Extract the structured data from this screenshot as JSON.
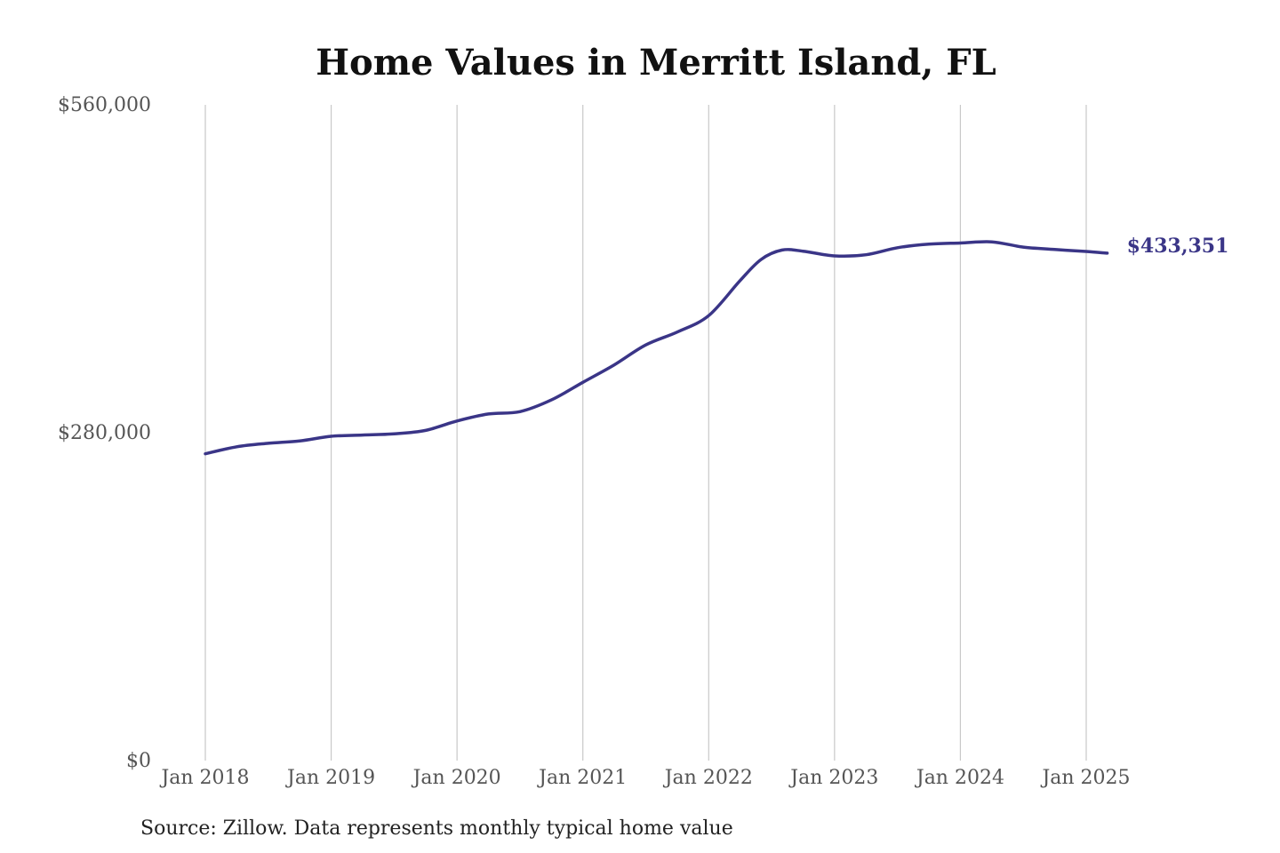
{
  "chart_data": {
    "type": "line",
    "title": "Home Values in Merritt Island, FL",
    "source": "Source: Zillow. Data represents monthly typical home value",
    "xlabel": "",
    "ylabel": "",
    "ylim": [
      0,
      560000
    ],
    "yticks": [
      {
        "value": 0,
        "label": "$0"
      },
      {
        "value": 280000,
        "label": "$280,000"
      },
      {
        "value": 560000,
        "label": "$560,000"
      }
    ],
    "xticks": [
      {
        "date": "2018-01",
        "label": "Jan 2018"
      },
      {
        "date": "2019-01",
        "label": "Jan 2019"
      },
      {
        "date": "2020-01",
        "label": "Jan 2020"
      },
      {
        "date": "2021-01",
        "label": "Jan 2021"
      },
      {
        "date": "2022-01",
        "label": "Jan 2022"
      },
      {
        "date": "2023-01",
        "label": "Jan 2023"
      },
      {
        "date": "2024-01",
        "label": "Jan 2024"
      },
      {
        "date": "2025-01",
        "label": "Jan 2025"
      }
    ],
    "grid": "vertical",
    "series": [
      {
        "color": "#3a3587",
        "end_label": "$433,351",
        "points": [
          {
            "x": "2018-01",
            "y": 262000
          },
          {
            "x": "2018-04",
            "y": 268000
          },
          {
            "x": "2018-07",
            "y": 271000
          },
          {
            "x": "2018-10",
            "y": 273000
          },
          {
            "x": "2019-01",
            "y": 277000
          },
          {
            "x": "2019-04",
            "y": 278000
          },
          {
            "x": "2019-07",
            "y": 279000
          },
          {
            "x": "2019-10",
            "y": 282000
          },
          {
            "x": "2020-01",
            "y": 290000
          },
          {
            "x": "2020-04",
            "y": 296000
          },
          {
            "x": "2020-07",
            "y": 298000
          },
          {
            "x": "2020-10",
            "y": 308000
          },
          {
            "x": "2021-01",
            "y": 323000
          },
          {
            "x": "2021-04",
            "y": 338000
          },
          {
            "x": "2021-07",
            "y": 355000
          },
          {
            "x": "2021-10",
            "y": 366000
          },
          {
            "x": "2022-01",
            "y": 380000
          },
          {
            "x": "2022-04",
            "y": 410000
          },
          {
            "x": "2022-06",
            "y": 428000
          },
          {
            "x": "2022-08",
            "y": 436000
          },
          {
            "x": "2022-10",
            "y": 435000
          },
          {
            "x": "2023-01",
            "y": 431000
          },
          {
            "x": "2023-04",
            "y": 432000
          },
          {
            "x": "2023-07",
            "y": 438000
          },
          {
            "x": "2023-10",
            "y": 441000
          },
          {
            "x": "2024-01",
            "y": 442000
          },
          {
            "x": "2024-04",
            "y": 443000
          },
          {
            "x": "2024-07",
            "y": 438500
          },
          {
            "x": "2024-10",
            "y": 436500
          },
          {
            "x": "2025-01",
            "y": 434800
          },
          {
            "x": "2025-03",
            "y": 433351
          }
        ]
      }
    ]
  }
}
